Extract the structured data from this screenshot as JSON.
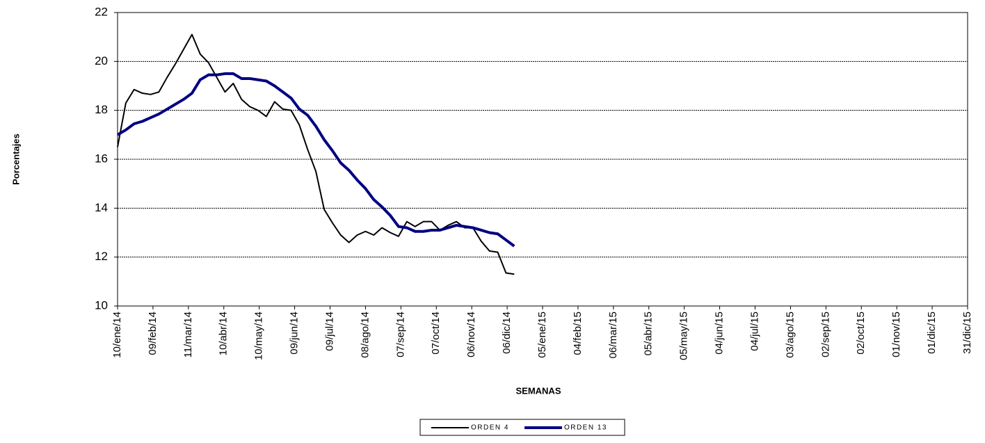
{
  "chart_data": {
    "type": "line",
    "x_label": "SEMANAS",
    "y_label": "Porcentajes",
    "x": [
      "2014-01-10",
      "2014-01-17",
      "2014-01-24",
      "2014-01-31",
      "2014-02-07",
      "2014-02-14",
      "2014-02-21",
      "2014-02-28",
      "2014-03-07",
      "2014-03-14",
      "2014-03-21",
      "2014-03-28",
      "2014-04-04",
      "2014-04-11",
      "2014-04-18",
      "2014-04-25",
      "2014-05-02",
      "2014-05-09",
      "2014-05-16",
      "2014-05-23",
      "2014-05-30",
      "2014-06-06",
      "2014-06-13",
      "2014-06-20",
      "2014-06-27",
      "2014-07-04",
      "2014-07-11",
      "2014-07-18",
      "2014-07-25",
      "2014-08-01",
      "2014-08-08",
      "2014-08-15",
      "2014-08-22",
      "2014-08-29",
      "2014-09-05",
      "2014-09-12",
      "2014-09-19",
      "2014-09-26",
      "2014-10-03",
      "2014-10-10",
      "2014-10-17",
      "2014-10-24",
      "2014-10-31",
      "2014-11-07",
      "2014-11-14",
      "2014-11-21",
      "2014-11-28",
      "2014-12-05",
      "2014-12-12"
    ],
    "series": [
      {
        "name": "ORDEN 4",
        "color": "#000000",
        "width": 2,
        "values": [
          16.5,
          18.3,
          18.85,
          18.7,
          18.65,
          18.75,
          19.35,
          19.9,
          20.5,
          21.1,
          20.3,
          19.95,
          19.35,
          18.75,
          19.1,
          18.45,
          18.15,
          18.0,
          17.75,
          18.35,
          18.05,
          18.0,
          17.4,
          16.4,
          15.5,
          13.95,
          13.4,
          12.9,
          12.6,
          12.9,
          13.05,
          12.9,
          13.2,
          13.0,
          12.85,
          13.45,
          13.25,
          13.45,
          13.45,
          13.1,
          13.3,
          13.45,
          13.2,
          13.2,
          12.65,
          12.25,
          12.2,
          11.35,
          11.3
        ]
      },
      {
        "name": "ORDEN 13",
        "color": "#000080",
        "width": 4,
        "values": [
          17.0,
          17.2,
          17.45,
          17.55,
          17.7,
          17.85,
          18.05,
          18.25,
          18.45,
          18.7,
          19.25,
          19.45,
          19.45,
          19.5,
          19.5,
          19.3,
          19.3,
          19.25,
          19.2,
          19.0,
          18.75,
          18.5,
          18.05,
          17.8,
          17.35,
          16.8,
          16.35,
          15.85,
          15.55,
          15.15,
          14.8,
          14.35,
          14.05,
          13.7,
          13.25,
          13.2,
          13.05,
          13.05,
          13.1,
          13.1,
          13.2,
          13.3,
          13.25,
          13.2,
          13.1,
          13.0,
          12.95,
          12.7,
          12.45
        ]
      }
    ],
    "xlim": [
      "2014-01-10",
      "2015-12-31"
    ],
    "xticks": [
      {
        "value": "2014-01-10",
        "label": "10/ene/14"
      },
      {
        "value": "2014-02-09",
        "label": "09/feb/14"
      },
      {
        "value": "2014-03-11",
        "label": "11/mar/14"
      },
      {
        "value": "2014-04-10",
        "label": "10/abr/14"
      },
      {
        "value": "2014-05-10",
        "label": "10/may/14"
      },
      {
        "value": "2014-06-09",
        "label": "09/jun/14"
      },
      {
        "value": "2014-07-09",
        "label": "09/jul/14"
      },
      {
        "value": "2014-08-08",
        "label": "08/ago/14"
      },
      {
        "value": "2014-09-07",
        "label": "07/sep/14"
      },
      {
        "value": "2014-10-07",
        "label": "07/oct/14"
      },
      {
        "value": "2014-11-06",
        "label": "06/nov/14"
      },
      {
        "value": "2014-12-06",
        "label": "06/dic/14"
      },
      {
        "value": "2015-01-05",
        "label": "05/ene/15"
      },
      {
        "value": "2015-02-04",
        "label": "04/feb/15"
      },
      {
        "value": "2015-03-06",
        "label": "06/mar/15"
      },
      {
        "value": "2015-04-05",
        "label": "05/abr/15"
      },
      {
        "value": "2015-05-05",
        "label": "05/may/15"
      },
      {
        "value": "2015-06-04",
        "label": "04/jun/15"
      },
      {
        "value": "2015-07-04",
        "label": "04/jul/15"
      },
      {
        "value": "2015-08-03",
        "label": "03/ago/15"
      },
      {
        "value": "2015-09-02",
        "label": "02/sep/15"
      },
      {
        "value": "2015-10-02",
        "label": "02/oct/15"
      },
      {
        "value": "2015-11-01",
        "label": "01/nov/15"
      },
      {
        "value": "2015-12-01",
        "label": "01/dic/15"
      },
      {
        "value": "2015-12-31",
        "label": "31/dic/15"
      }
    ],
    "ylim": [
      10,
      22
    ],
    "yticks": [
      10,
      12,
      14,
      16,
      18,
      20,
      22
    ],
    "grid": true
  }
}
